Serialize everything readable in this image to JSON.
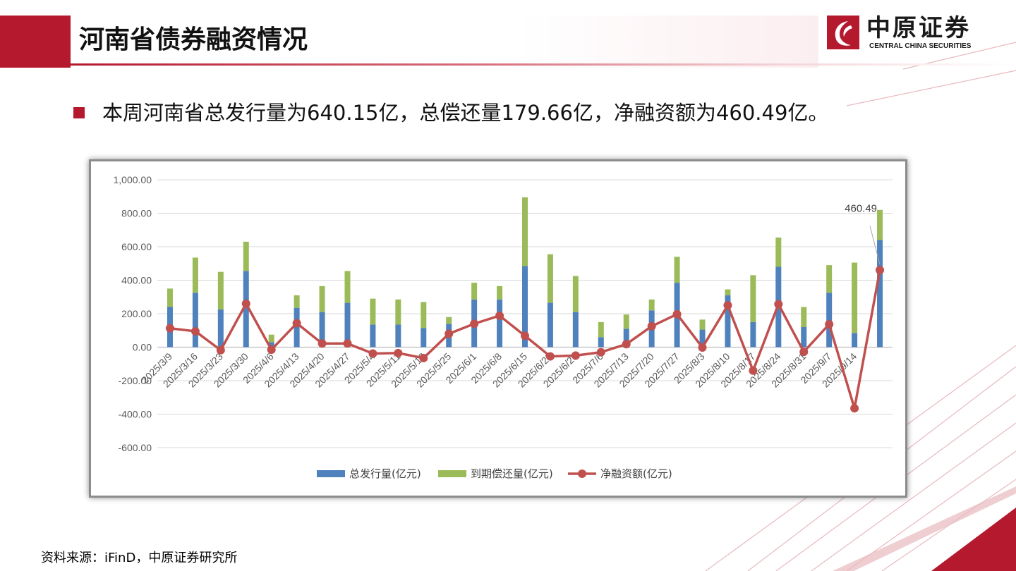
{
  "header": {
    "title": "河南省债券融资情况",
    "logo_cn": "中原证券",
    "logo_en": "CENTRAL CHINA SECURITIES"
  },
  "summary": {
    "text": "本周河南省总发行量为640.15亿，总偿还量179.66亿，净融资额为460.49亿。"
  },
  "footer": {
    "source": "资料来源：iFinD，中原证券研究所"
  },
  "colors": {
    "brand_red": "#b4192e",
    "issuance_blue": "#4f81bd",
    "repayment_green": "#9bbb59",
    "net_line_red": "#c0504d"
  },
  "chart_data": {
    "type": "bar",
    "stacked": true,
    "categories": [
      "2025/3/9",
      "2025/3/16",
      "2025/3/23",
      "2025/3/30",
      "2025/4/6",
      "2025/4/13",
      "2025/4/20",
      "2025/4/27",
      "2025/5/4",
      "2025/5/11",
      "2025/5/18",
      "2025/5/25",
      "2025/6/1",
      "2025/6/8",
      "2025/6/15",
      "2025/6/22",
      "2025/6/29",
      "2025/7/6",
      "2025/7/13",
      "2025/7/20",
      "2025/7/27",
      "2025/8/3",
      "2025/8/10",
      "2025/8/17",
      "2025/8/24",
      "2025/8/31",
      "2025/9/7",
      "2025/9/14",
      "2025/9/21"
    ],
    "tick_labels": [
      "2025/3/9",
      "2025/3/16",
      "2025/3/23",
      "2025/3/30",
      "2025/4/6",
      "2025/4/13",
      "2025/4/20",
      "2025/4/27",
      "2025/5/4",
      "2025/5/11",
      "2025/5/18",
      "2025/5/25",
      "2025/6/1",
      "2025/6/8",
      "2025/6/15",
      "2025/6/22",
      "2025/6/29",
      "2025/7/6",
      "2025/7/13",
      "2025/7/20",
      "2025/7/27",
      "2025/8/3",
      "2025/8/10",
      "2025/8/17",
      "2025/8/24",
      "2025/8/31",
      "2025/9/7",
      "2025/9/14",
      ""
    ],
    "series": [
      {
        "name": "总发行量(亿元)",
        "type": "bar",
        "color": "#4f81bd",
        "values": [
          240,
          325,
          225,
          455,
          30,
          235,
          210,
          265,
          135,
          135,
          115,
          140,
          285,
          285,
          485,
          265,
          210,
          60,
          110,
          220,
          385,
          105,
          310,
          150,
          480,
          120,
          325,
          85,
          640.15
        ]
      },
      {
        "name": "到期偿还量(亿元)",
        "type": "bar",
        "color": "#9bbb59",
        "values": [
          110,
          210,
          225,
          175,
          45,
          75,
          155,
          190,
          155,
          150,
          155,
          40,
          100,
          80,
          410,
          290,
          215,
          90,
          85,
          65,
          155,
          60,
          35,
          280,
          175,
          120,
          165,
          420,
          179.66
        ]
      },
      {
        "name": "净融资额(亿元)",
        "type": "line",
        "color": "#c0504d",
        "values": [
          113,
          95,
          -18,
          260,
          -15,
          143,
          22,
          22,
          -38,
          -35,
          -65,
          80,
          140,
          188,
          68,
          -55,
          -50,
          -30,
          18,
          125,
          197,
          -2,
          250,
          -140,
          257,
          -28,
          137,
          -365,
          460.49
        ]
      }
    ],
    "annotation": "460.49",
    "y_ticks": [
      "1,000.00",
      "800.00",
      "600.00",
      "400.00",
      "200.00",
      "0.00",
      "-200.00",
      "-400.00",
      "-600.00"
    ],
    "ylim": [
      -600,
      1000
    ],
    "grid": true,
    "legend_position": "bottom"
  }
}
